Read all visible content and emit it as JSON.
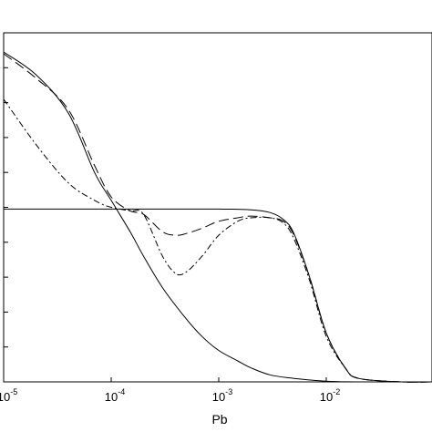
{
  "chart_data": {
    "type": "line",
    "title": "",
    "xlabel": "Pb",
    "ylabel": "",
    "xscale": "log",
    "xlim": [
      1e-05,
      0.1
    ],
    "ylim": [
      0,
      1
    ],
    "grid": false,
    "x_tick_labels": [
      {
        "value": 1e-05,
        "base": "10",
        "exp": "-5"
      },
      {
        "value": 0.0001,
        "base": "10",
        "exp": "-4"
      },
      {
        "value": 0.001,
        "base": "10",
        "exp": "-3"
      },
      {
        "value": 0.01,
        "base": "10",
        "exp": "-2"
      }
    ],
    "series": [
      {
        "style": "solid",
        "x": [
          1e-05,
          2e-05,
          4e-05,
          7e-05,
          0.0001,
          0.00015,
          0.0002,
          0.0003,
          0.0005,
          0.0007,
          0.001,
          0.0015,
          0.002,
          0.003,
          0.005,
          0.01,
          0.02,
          0.05,
          0.1
        ],
        "y": [
          0.945,
          0.88,
          0.77,
          0.6,
          0.52,
          0.43,
          0.36,
          0.27,
          0.18,
          0.13,
          0.09,
          0.06,
          0.04,
          0.02,
          0.01,
          0.002,
          0.0,
          0.0,
          0.0
        ]
      },
      {
        "style": "dash-dot",
        "x": [
          1e-05,
          2e-05,
          4e-05,
          7e-05,
          0.0001,
          0.00015,
          0.0002,
          0.0003,
          0.0004,
          0.0005,
          0.0007,
          0.001,
          0.0015,
          0.002,
          0.003,
          0.004,
          0.005,
          0.007,
          0.01,
          0.015,
          0.02,
          0.05,
          0.1
        ],
        "y": [
          0.81,
          0.68,
          0.57,
          0.52,
          0.5,
          0.49,
          0.48,
          0.36,
          0.31,
          0.315,
          0.36,
          0.42,
          0.46,
          0.47,
          0.47,
          0.455,
          0.41,
          0.29,
          0.13,
          0.04,
          0.01,
          0.0,
          0.0
        ]
      },
      {
        "style": "long-dash",
        "x": [
          1e-05,
          2e-05,
          4e-05,
          7e-05,
          0.0001,
          0.00015,
          0.0002,
          0.0003,
          0.0004,
          0.0005,
          0.0007,
          0.001,
          0.0015,
          0.002,
          0.003,
          0.004,
          0.005,
          0.007,
          0.01,
          0.015,
          0.02,
          0.05,
          0.1
        ],
        "y": [
          0.94,
          0.87,
          0.78,
          0.62,
          0.53,
          0.49,
          0.48,
          0.43,
          0.42,
          0.425,
          0.44,
          0.46,
          0.47,
          0.475,
          0.47,
          0.46,
          0.42,
          0.3,
          0.14,
          0.04,
          0.01,
          0.0,
          0.0
        ]
      },
      {
        "style": "solid",
        "x": [
          1e-05,
          2e-05,
          4e-05,
          7e-05,
          0.0001,
          0.00015,
          0.0002,
          0.0005,
          0.001,
          0.002,
          0.003,
          0.004,
          0.005,
          0.007,
          0.01,
          0.015,
          0.02,
          0.05,
          0.1
        ],
        "y": [
          0.495,
          0.495,
          0.495,
          0.495,
          0.495,
          0.495,
          0.495,
          0.495,
          0.495,
          0.493,
          0.485,
          0.465,
          0.425,
          0.3,
          0.14,
          0.04,
          0.01,
          0.0,
          0.0
        ]
      }
    ]
  }
}
